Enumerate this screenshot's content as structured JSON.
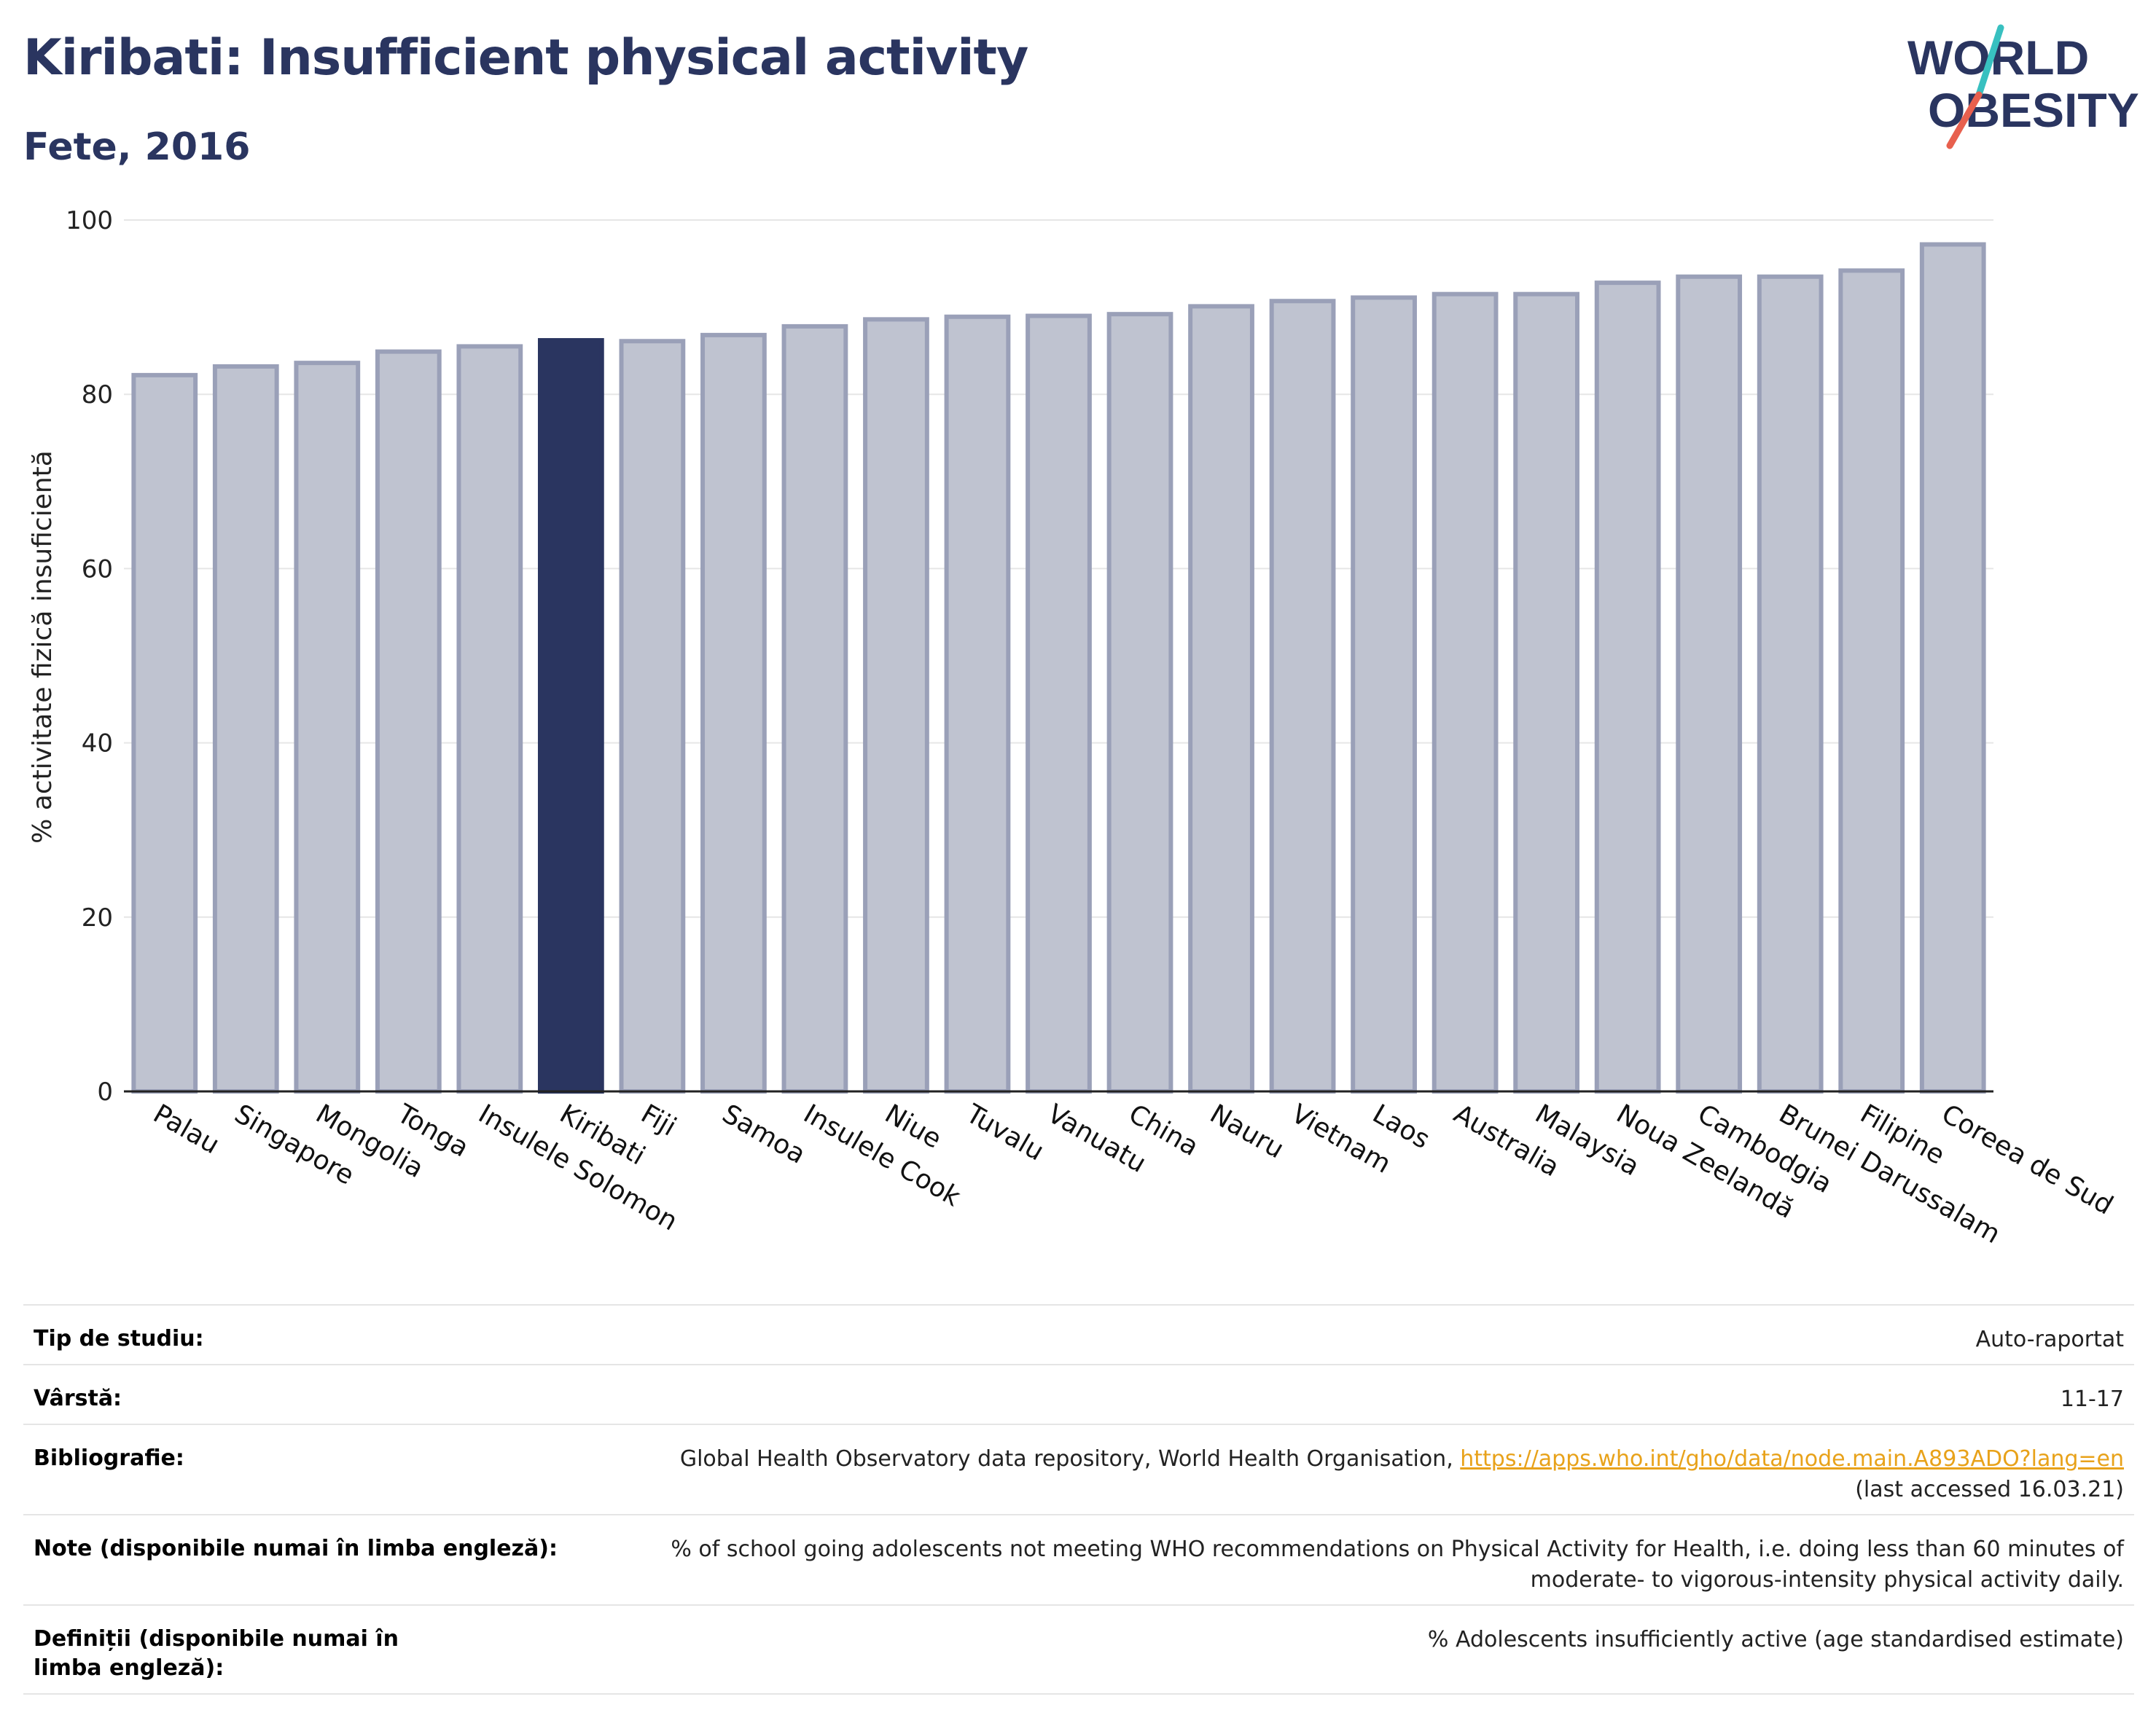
{
  "header": {
    "title": "Kiribati: Insufficient physical activity",
    "subtitle": "Fete, 2016"
  },
  "logo": {
    "line1": "WORLD",
    "line2": "OBESITY",
    "accent_colors": [
      "#38c0c0",
      "#e8604e"
    ]
  },
  "colors": {
    "bar_default": "#bfc3d0",
    "bar_border": "#9aa0b8",
    "bar_highlight": "#2a3560",
    "title": "#2a3560",
    "link": "#e8a21a"
  },
  "chart_data": {
    "type": "bar",
    "ylabel": "% activitate fizică insuficientă",
    "xlabel": "",
    "ylim": [
      0,
      100
    ],
    "yticks": [
      0,
      20,
      40,
      60,
      80,
      100
    ],
    "grid": true,
    "highlight": "Kiribati",
    "categories": [
      "Palau",
      "Singapore",
      "Mongolia",
      "Tonga",
      "Insulele Solomon",
      "Kiribati",
      "Fiji",
      "Samoa",
      "Insulele Cook",
      "Niue",
      "Tuvalu",
      "Vanuatu",
      "China",
      "Nauru",
      "Vietnam",
      "Laos",
      "Australia",
      "Malaysia",
      "Noua Zeelandă",
      "Cambodgia",
      "Brunei Darussalam",
      "Filipine",
      "Coreea de Sud"
    ],
    "values": [
      82.2,
      83.2,
      83.6,
      84.9,
      85.5,
      86.2,
      86.1,
      86.8,
      87.8,
      88.6,
      88.9,
      89.0,
      89.2,
      90.1,
      90.7,
      91.1,
      91.5,
      91.5,
      92.8,
      93.5,
      93.5,
      94.2,
      97.2
    ]
  },
  "meta": {
    "study_type": {
      "label": "Tip de studiu:",
      "value": "Auto-raportat"
    },
    "age": {
      "label": "Vârstă:",
      "value": "11-17"
    },
    "bibliography": {
      "label": "Bibliografie:",
      "text": "Global Health Observatory data repository, World Health Organisation, ",
      "link": "https://apps.who.int/gho/data/node.main.A893ADO?lang=en",
      "accessed": "(last accessed 16.03.21)"
    },
    "notes": {
      "label": "Note (disponibile numai în limba engleză):",
      "value": "% of school going adolescents not meeting WHO recommendations on Physical Activity for Health, i.e. doing less than 60 minutes of moderate- to vigorous-intensity physical activity daily."
    },
    "definitions": {
      "label": "Definiții (disponibile numai în limba engleză):",
      "value": "% Adolescents insufficiently active (age standardised estimate)"
    }
  }
}
